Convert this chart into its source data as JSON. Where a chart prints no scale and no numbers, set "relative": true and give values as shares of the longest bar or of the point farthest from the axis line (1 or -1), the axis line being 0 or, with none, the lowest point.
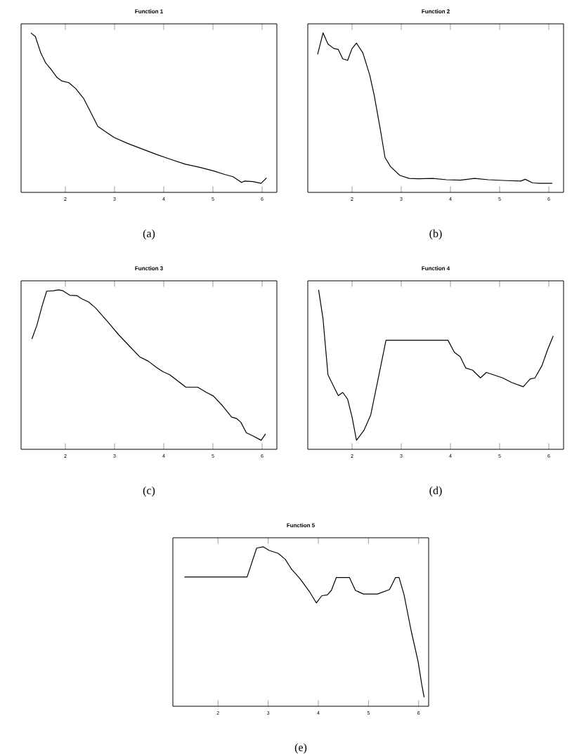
{
  "chart_data": [
    {
      "type": "line",
      "title": "Function 1",
      "relative": true,
      "xlim": [
        1.1,
        6.3
      ],
      "xticks": [
        2,
        3,
        4,
        5,
        6
      ],
      "annotations": [
        "(a)"
      ],
      "series": [
        {
          "color": "#000000",
          "x": [
            1.3,
            1.39,
            1.5,
            1.6,
            1.71,
            1.83,
            1.93,
            2.07,
            2.21,
            2.37,
            2.5,
            2.66,
            2.83,
            2.99,
            3.26,
            3.54,
            3.83,
            4.11,
            4.44,
            4.72,
            5.01,
            5.24,
            5.41,
            5.58,
            5.64,
            5.81,
            5.98,
            6.09
          ],
          "values": [
            1.0,
            0.976,
            0.867,
            0.8,
            0.757,
            0.704,
            0.68,
            0.669,
            0.63,
            0.565,
            0.482,
            0.379,
            0.34,
            0.305,
            0.266,
            0.231,
            0.195,
            0.163,
            0.127,
            0.107,
            0.083,
            0.059,
            0.044,
            0.006,
            0.015,
            0.012,
            0,
            0.036
          ]
        }
      ]
    },
    {
      "type": "line",
      "title": "Function 2",
      "relative": true,
      "xlim": [
        1.1,
        6.3
      ],
      "xticks": [
        2,
        3,
        4,
        5,
        6
      ],
      "annotations": [
        "(b)"
      ],
      "series": [
        {
          "color": "#000000",
          "x": [
            1.3,
            1.41,
            1.51,
            1.63,
            1.72,
            1.81,
            1.91,
            2.0,
            2.09,
            2.22,
            2.36,
            2.45,
            2.58,
            2.67,
            2.78,
            2.97,
            3.16,
            3.35,
            3.64,
            3.92,
            4.2,
            4.49,
            4.77,
            5.15,
            5.43,
            5.52,
            5.67,
            5.81,
            6.0,
            6.07
          ],
          "values": [
            0.858,
            1.0,
            0.926,
            0.896,
            0.89,
            0.828,
            0.817,
            0.896,
            0.932,
            0.867,
            0.719,
            0.586,
            0.349,
            0.172,
            0.112,
            0.053,
            0.033,
            0.03,
            0.033,
            0.024,
            0.021,
            0.033,
            0.024,
            0.018,
            0.015,
            0.027,
            0.003,
            0,
            0,
            0
          ]
        }
      ]
    },
    {
      "type": "line",
      "title": "Function 3",
      "relative": true,
      "xlim": [
        1.1,
        6.3
      ],
      "xticks": [
        2,
        3,
        4,
        5,
        6
      ],
      "annotations": [
        "(c)"
      ],
      "series": [
        {
          "color": "#000000",
          "x": [
            1.32,
            1.42,
            1.53,
            1.62,
            1.76,
            1.86,
            1.95,
            2.09,
            2.24,
            2.33,
            2.47,
            2.61,
            2.85,
            3.08,
            3.32,
            3.51,
            3.69,
            3.84,
            3.98,
            4.12,
            4.26,
            4.45,
            4.69,
            4.87,
            5.01,
            5.2,
            5.38,
            5.48,
            5.57,
            5.68,
            5.81,
            5.98,
            6.07
          ],
          "values": [
            0.674,
            0.763,
            0.896,
            0.991,
            0.994,
            1.0,
            0.994,
            0.964,
            0.961,
            0.941,
            0.92,
            0.881,
            0.792,
            0.703,
            0.62,
            0.555,
            0.525,
            0.487,
            0.457,
            0.436,
            0.401,
            0.353,
            0.353,
            0.318,
            0.294,
            0.228,
            0.154,
            0.145,
            0.119,
            0.05,
            0.03,
            0,
            0.042
          ]
        }
      ]
    },
    {
      "type": "line",
      "title": "Function 4",
      "relative": true,
      "xlim": [
        1.1,
        6.3
      ],
      "xticks": [
        2,
        3,
        4,
        5,
        6
      ],
      "annotations": [
        "(d)"
      ],
      "series": [
        {
          "color": "#000000",
          "x": [
            1.32,
            1.41,
            1.51,
            1.62,
            1.72,
            1.81,
            1.91,
            2.0,
            2.09,
            2.24,
            2.38,
            2.52,
            2.69,
            2.99,
            3.36,
            3.75,
            3.95,
            4.08,
            4.2,
            4.31,
            4.45,
            4.61,
            4.73,
            4.87,
            5.06,
            5.25,
            5.48,
            5.62,
            5.72,
            5.86,
            5.98,
            6.09
          ],
          "values": [
            1.0,
            0.807,
            0.436,
            0.362,
            0.297,
            0.318,
            0.273,
            0.154,
            0,
            0.065,
            0.169,
            0.392,
            0.665,
            0.665,
            0.665,
            0.665,
            0.665,
            0.585,
            0.555,
            0.481,
            0.466,
            0.415,
            0.451,
            0.436,
            0.415,
            0.383,
            0.356,
            0.407,
            0.415,
            0.496,
            0.606,
            0.694
          ]
        }
      ]
    },
    {
      "type": "line",
      "title": "Function 5",
      "relative": true,
      "xlim": [
        1.1,
        6.2
      ],
      "xticks": [
        2,
        3,
        4,
        5,
        6
      ],
      "annotations": [
        "(e)"
      ],
      "series": [
        {
          "color": "#000000",
          "x": [
            1.33,
            1.88,
            2.58,
            2.77,
            2.9,
            3.02,
            3.2,
            3.34,
            3.47,
            3.63,
            3.82,
            3.96,
            4.07,
            4.18,
            4.26,
            4.36,
            4.62,
            4.74,
            4.9,
            5.18,
            5.42,
            5.54,
            5.61,
            5.71,
            5.85,
            5.99,
            6.06,
            6.11
          ],
          "values": [
            0.799,
            0.799,
            0.799,
            0.991,
            1.0,
            0.976,
            0.956,
            0.917,
            0.849,
            0.79,
            0.704,
            0.627,
            0.675,
            0.68,
            0.71,
            0.796,
            0.796,
            0.71,
            0.686,
            0.686,
            0.716,
            0.796,
            0.796,
            0.68,
            0.444,
            0.237,
            0.089,
            0
          ]
        }
      ]
    }
  ]
}
